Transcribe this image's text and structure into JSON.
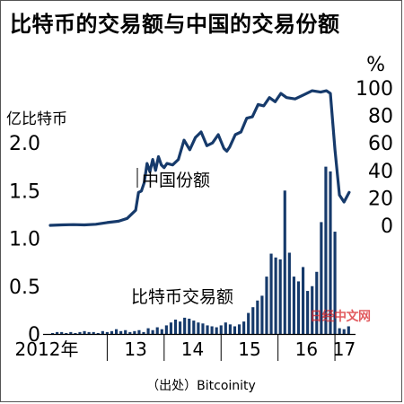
{
  "title": "比特币的交易额与中国的交易份额",
  "source": "（出处）Bitcoinity",
  "watermark": "日经中文网",
  "chart_data": {
    "type": "bar+line",
    "title": "比特币的交易额与中国的交易份额",
    "x_tick_labels": [
      "2012年",
      "13",
      "14",
      "15",
      "16",
      "17"
    ],
    "x_years": [
      2012,
      2013,
      2014,
      2015,
      2016,
      2017
    ],
    "left_axis": {
      "unit_label": "亿比特币",
      "ylim": [
        0,
        2.0
      ],
      "ticks": [
        0,
        0.5,
        1.0,
        1.5,
        2.0
      ],
      "tick_labels": [
        "0",
        "0.5",
        "1.0",
        "1.5",
        "2.0"
      ]
    },
    "right_axis": {
      "unit_label": "%",
      "ylim": [
        0,
        100
      ],
      "ticks": [
        0,
        20,
        40,
        60,
        80,
        100
      ],
      "tick_labels": [
        "0",
        "20",
        "40",
        "60",
        "80",
        "100"
      ]
    },
    "bars": {
      "name": "比特币交易额",
      "axis": "left",
      "x": [
        2012.04,
        2012.12,
        2012.2,
        2012.28,
        2012.36,
        2012.44,
        2012.52,
        2012.6,
        2012.68,
        2012.76,
        2012.84,
        2012.92,
        2013.0,
        2013.08,
        2013.16,
        2013.24,
        2013.32,
        2013.4,
        2013.48,
        2013.56,
        2013.64,
        2013.72,
        2013.8,
        2013.88,
        2013.96,
        2014.04,
        2014.12,
        2014.2,
        2014.28,
        2014.36,
        2014.44,
        2014.52,
        2014.6,
        2014.68,
        2014.76,
        2014.84,
        2014.92,
        2015.0,
        2015.08,
        2015.16,
        2015.24,
        2015.32,
        2015.4,
        2015.48,
        2015.56,
        2015.64,
        2015.72,
        2015.8,
        2015.88,
        2015.96,
        2016.04,
        2016.12,
        2016.2,
        2016.28,
        2016.36,
        2016.44,
        2016.52,
        2016.6,
        2016.68,
        2016.76,
        2016.84,
        2016.92,
        2017.0,
        2017.08,
        2017.16,
        2017.24
      ],
      "values": [
        0.01,
        0.02,
        0.02,
        0.01,
        0.02,
        0.01,
        0.02,
        0.03,
        0.02,
        0.02,
        0.01,
        0.03,
        0.02,
        0.03,
        0.05,
        0.03,
        0.04,
        0.02,
        0.03,
        0.04,
        0.02,
        0.06,
        0.04,
        0.07,
        0.05,
        0.09,
        0.12,
        0.15,
        0.13,
        0.17,
        0.16,
        0.14,
        0.12,
        0.11,
        0.09,
        0.08,
        0.07,
        0.09,
        0.12,
        0.1,
        0.08,
        0.1,
        0.13,
        0.22,
        0.28,
        0.35,
        0.4,
        0.6,
        0.84,
        0.8,
        0.78,
        1.5,
        0.85,
        0.6,
        0.55,
        0.7,
        0.45,
        0.5,
        0.65,
        1.17,
        1.75,
        1.7,
        1.07,
        0.06,
        0.05,
        0.08
      ],
      "color": "#163a6b"
    },
    "line": {
      "name": "中国份额",
      "axis": "right",
      "x": [
        2012.0,
        2012.2,
        2012.4,
        2012.6,
        2012.8,
        2013.0,
        2013.2,
        2013.35,
        2013.5,
        2013.55,
        2013.6,
        2013.65,
        2013.7,
        2013.75,
        2013.8,
        2013.85,
        2013.9,
        2013.95,
        2014.0,
        2014.05,
        2014.15,
        2014.25,
        2014.35,
        2014.45,
        2014.55,
        2014.65,
        2014.75,
        2014.85,
        2014.95,
        2015.05,
        2015.1,
        2015.15,
        2015.25,
        2015.35,
        2015.45,
        2015.55,
        2015.65,
        2015.75,
        2015.85,
        2015.95,
        2016.05,
        2016.15,
        2016.3,
        2016.45,
        2016.6,
        2016.75,
        2016.85,
        2016.92,
        2017.0,
        2017.08,
        2017.16,
        2017.25
      ],
      "values": [
        0,
        0.3,
        0.5,
        0.3,
        0.8,
        2,
        3,
        5,
        11,
        24,
        25,
        31,
        45,
        39,
        48,
        40,
        50,
        44,
        42,
        45,
        44,
        48,
        62,
        55,
        64,
        68,
        58,
        60,
        66,
        56,
        54,
        57,
        66,
        68,
        78,
        79,
        88,
        87,
        93,
        90,
        96,
        93,
        92,
        95,
        98,
        97,
        98,
        96,
        55,
        22,
        17,
        24
      ],
      "color": "#163a6b",
      "label_pos": "left of line, mid chart"
    },
    "grid": false,
    "legend": "inline labels"
  }
}
